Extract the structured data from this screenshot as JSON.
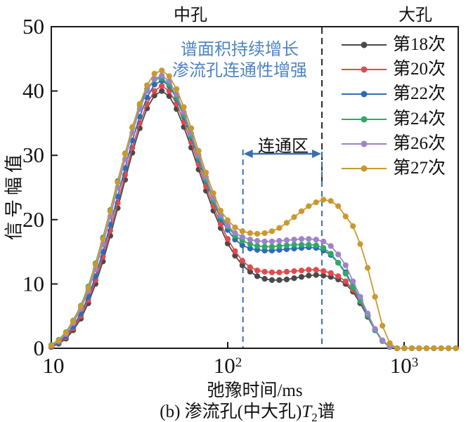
{
  "figure": {
    "region_labels": {
      "medium_pore": "中孔",
      "large_pore": "大孔"
    },
    "annotation_lines": [
      "谱面积持续增长",
      "渗流孔连通性增强"
    ],
    "connectivity_label": "连通区",
    "ylabel": "信号幅值",
    "xlabel": "弛豫时间/ms",
    "caption": {
      "prefix": "(b) 渗流孔(中大孔)",
      "t_symbol": "T",
      "t_subscript": "2",
      "suffix": "谱"
    }
  },
  "axes": {
    "y_ticks": [
      0,
      10,
      20,
      30,
      40,
      50
    ],
    "x_ticks": [
      {
        "base": "10",
        "exp": ""
      },
      {
        "base": "10",
        "exp": "2"
      },
      {
        "base": "10",
        "exp": "3"
      }
    ],
    "x_range_ms": [
      10,
      2000
    ],
    "y_range": [
      0,
      50
    ]
  },
  "annotations": {
    "connectivity_zone_ms": {
      "start": 122,
      "end": 342
    },
    "pore_divider_ms": 342,
    "dashed_blue_color": "#3a6fb2",
    "dashed_black_color": "#2a2a2a",
    "annotation_text_color": "#4c84c4"
  },
  "legend": {
    "items": [
      {
        "label": "第18次",
        "color": "#4a4a4a"
      },
      {
        "label": "第20次",
        "color": "#e34a4e"
      },
      {
        "label": "第22次",
        "color": "#2d6cb5"
      },
      {
        "label": "第24次",
        "color": "#2fa965"
      },
      {
        "label": "第26次",
        "color": "#9d83c9"
      },
      {
        "label": "第27次",
        "color": "#c9992f"
      }
    ]
  },
  "chart_data": {
    "type": "line",
    "x_scale": "log",
    "xlabel": "弛豫时间/ms",
    "ylabel": "信号幅值",
    "xlim_ms": [
      10,
      2000
    ],
    "ylim": [
      0,
      50
    ],
    "grid": false,
    "legend_position": "upper right",
    "x_ms": [
      10,
      11,
      12.1,
      13.3,
      14.7,
      16.2,
      17.8,
      19.6,
      21.6,
      23.8,
      26.2,
      28.8,
      31.7,
      34.9,
      38.4,
      42.3,
      46.6,
      51.3,
      56.4,
      62.1,
      68.4,
      75.3,
      82.9,
      91.2,
      100,
      110,
      121,
      134,
      147,
      162,
      178,
      196,
      216,
      238,
      262,
      288,
      317,
      349,
      384,
      423,
      466,
      513,
      564,
      621,
      684,
      753,
      829,
      912,
      1004,
      1105,
      1216,
      1339,
      1474,
      1622,
      1785,
      1965
    ],
    "series": [
      {
        "name": "第18次",
        "color": "#4a4a4a",
        "values": [
          0.2,
          0.7,
          1.5,
          2.8,
          4.6,
          7.0,
          10.0,
          13.5,
          17.5,
          21.8,
          26.2,
          30.4,
          34.2,
          37.3,
          39.3,
          40.0,
          39.2,
          37.2,
          34.4,
          31.2,
          27.8,
          24.5,
          21.4,
          18.7,
          16.3,
          14.4,
          12.9,
          11.9,
          11.2,
          10.8,
          10.6,
          10.6,
          10.7,
          10.9,
          11.1,
          11.3,
          11.4,
          11.3,
          11.1,
          10.7,
          10.0,
          8.8,
          7.0,
          4.9,
          2.8,
          1.2,
          0.3,
          0,
          0,
          0,
          0,
          0,
          0,
          0,
          0,
          0
        ]
      },
      {
        "name": "第20次",
        "color": "#e34a4e",
        "values": [
          0.2,
          0.8,
          1.7,
          3.1,
          5.0,
          7.5,
          10.6,
          14.2,
          18.3,
          22.6,
          27.0,
          31.2,
          35.0,
          38.0,
          40.0,
          40.8,
          40.0,
          38.0,
          35.2,
          32.0,
          28.6,
          25.2,
          22.1,
          19.3,
          17.0,
          15.1,
          13.6,
          12.6,
          12.1,
          11.9,
          11.8,
          11.8,
          11.9,
          12.0,
          12.1,
          12.2,
          12.2,
          12.0,
          11.7,
          11.2,
          10.4,
          9.1,
          7.3,
          5.1,
          2.9,
          1.2,
          0.3,
          0,
          0,
          0,
          0,
          0,
          0,
          0,
          0,
          0
        ]
      },
      {
        "name": "第22次",
        "color": "#2d6cb5",
        "values": [
          0.3,
          0.9,
          1.9,
          3.4,
          5.4,
          8.0,
          11.2,
          15.0,
          19.2,
          23.6,
          28.0,
          32.3,
          36.0,
          39.0,
          41.0,
          41.6,
          40.8,
          38.8,
          36.0,
          32.8,
          29.4,
          26.0,
          22.9,
          20.1,
          18.4,
          16.9,
          16.0,
          15.5,
          15.3,
          15.2,
          15.2,
          15.3,
          15.4,
          15.5,
          15.6,
          15.7,
          15.6,
          15.2,
          14.5,
          13.3,
          11.8,
          9.7,
          7.5,
          5.2,
          2.9,
          1.2,
          0.3,
          0,
          0,
          0,
          0,
          0,
          0,
          0,
          0,
          0
        ]
      },
      {
        "name": "第24次",
        "color": "#2fa965",
        "values": [
          0.5,
          1.3,
          2.5,
          4.3,
          6.6,
          9.6,
          13.2,
          17.2,
          21.5,
          26.0,
          30.3,
          34.3,
          37.8,
          40.3,
          41.8,
          42.0,
          41.0,
          39.0,
          36.2,
          33.0,
          29.6,
          26.2,
          23.0,
          20.4,
          18.9,
          17.5,
          16.7,
          16.2,
          15.9,
          15.8,
          15.8,
          15.9,
          16.0,
          16.1,
          16.1,
          16.1,
          16.0,
          15.6,
          14.7,
          13.3,
          11.6,
          9.5,
          7.4,
          5.1,
          2.8,
          1.1,
          0.2,
          0,
          0,
          0,
          0,
          0,
          0,
          0,
          0,
          0
        ]
      },
      {
        "name": "第26次",
        "color": "#9d83c9",
        "values": [
          0.4,
          1.1,
          2.2,
          3.9,
          6.1,
          8.9,
          12.3,
          16.2,
          20.5,
          25.0,
          29.4,
          33.5,
          37.2,
          40.0,
          41.9,
          42.4,
          41.5,
          39.5,
          36.7,
          33.4,
          30.0,
          26.6,
          23.4,
          20.7,
          19.1,
          17.9,
          17.3,
          16.9,
          16.7,
          16.6,
          16.6,
          16.7,
          16.8,
          16.9,
          17.0,
          17.0,
          16.9,
          16.6,
          15.9,
          14.6,
          12.9,
          10.4,
          8.0,
          5.4,
          3.0,
          1.2,
          0.3,
          0,
          0,
          0,
          0,
          0,
          0,
          0,
          0,
          0
        ]
      },
      {
        "name": "第27次",
        "color": "#c9992f",
        "values": [
          0.4,
          1.2,
          2.4,
          4.2,
          6.5,
          9.4,
          13.0,
          17.0,
          21.3,
          25.8,
          30.2,
          34.4,
          38.0,
          40.9,
          42.7,
          43.2,
          42.3,
          40.3,
          37.5,
          34.2,
          30.7,
          27.3,
          24.1,
          21.4,
          19.9,
          18.8,
          18.2,
          17.9,
          17.8,
          17.9,
          18.2,
          18.7,
          19.5,
          20.4,
          21.3,
          22.1,
          22.7,
          23.1,
          22.9,
          22.1,
          20.5,
          19.0,
          16.2,
          12.5,
          8.0,
          3.5,
          0.8,
          0,
          0,
          0,
          0,
          0,
          0,
          0,
          0,
          0
        ]
      }
    ]
  }
}
